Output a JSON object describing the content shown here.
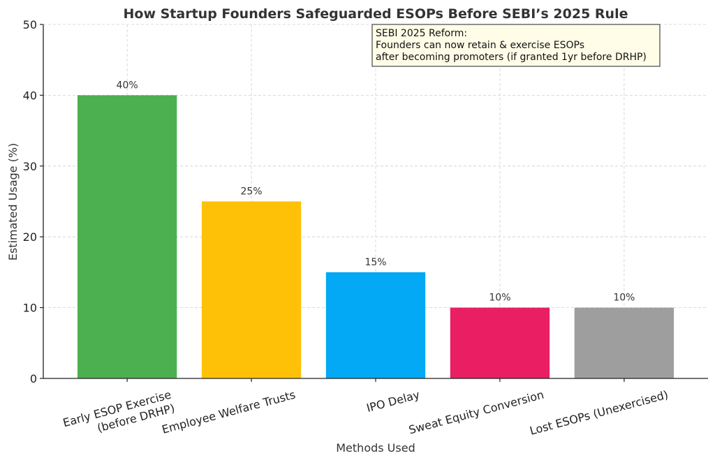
{
  "chart_data": {
    "type": "bar",
    "title": "How Startup Founders Safeguarded ESOPs Before SEBI’s 2025 Rule",
    "xlabel": "Methods Used",
    "ylabel": "Estimated Usage (%)",
    "ylim": [
      0,
      50
    ],
    "yticks": [
      0,
      10,
      20,
      30,
      40,
      50
    ],
    "grid": true,
    "categories": [
      [
        "Early ESOP Exercise",
        "(before DRHP)"
      ],
      [
        "Employee Welfare Trusts"
      ],
      [
        "IPO Delay"
      ],
      [
        "Sweat Equity Conversion"
      ],
      [
        "Lost ESOPs (Unexercised)"
      ]
    ],
    "values": [
      40,
      25,
      15,
      10,
      10
    ],
    "data_labels": [
      "40%",
      "25%",
      "15%",
      "10%",
      "10%"
    ],
    "colors": [
      "#4caf50",
      "#ffc107",
      "#03a9f4",
      "#e91e63",
      "#9e9e9e"
    ],
    "annotation": {
      "lines": [
        "SEBI 2025 Reform:",
        "Founders can now retain & exercise ESOPs",
        "after becoming promoters (if granted 1yr before DRHP)"
      ],
      "background": "#fffde7",
      "border": "#555555"
    }
  }
}
